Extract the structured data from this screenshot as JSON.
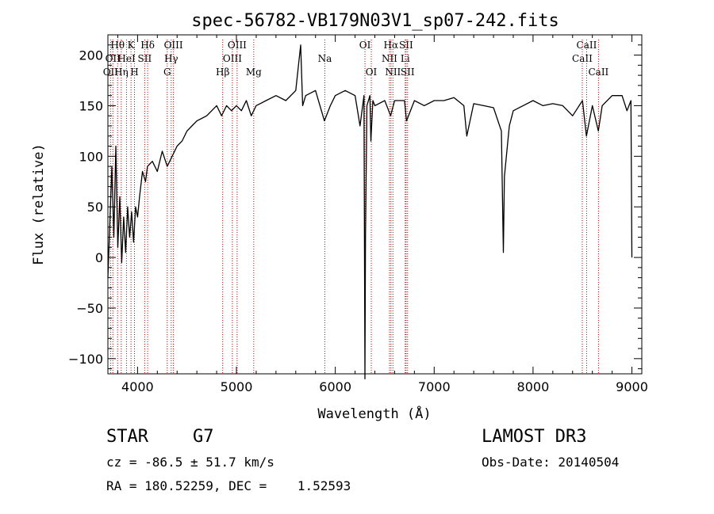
{
  "chart_data": {
    "type": "line",
    "title": "spec-56782-VB179N03V1_sp07-242.fits",
    "xlabel": "Wavelength (Å)",
    "ylabel": "Flux (relative)",
    "xlim": [
      3700,
      9100
    ],
    "ylim": [
      -115,
      220
    ],
    "xticks": [
      4000,
      5000,
      6000,
      7000,
      8000,
      9000
    ],
    "yticks": [
      -100,
      -50,
      0,
      50,
      100,
      150,
      200
    ],
    "series": [
      {
        "name": "spectrum",
        "x": [
          3700,
          3740,
          3760,
          3780,
          3800,
          3820,
          3840,
          3860,
          3880,
          3900,
          3920,
          3940,
          3960,
          3980,
          4000,
          4020,
          4050,
          4080,
          4100,
          4150,
          4200,
          4250,
          4300,
          4350,
          4400,
          4450,
          4500,
          4550,
          4600,
          4700,
          4800,
          4850,
          4900,
          4950,
          5000,
          5050,
          5100,
          5150,
          5200,
          5300,
          5400,
          5500,
          5600,
          5650,
          5670,
          5700,
          5800,
          5890,
          5950,
          6000,
          6100,
          6200,
          6250,
          6290,
          6300,
          6305,
          6320,
          6350,
          6360,
          6380,
          6400,
          6500,
          6560,
          6600,
          6700,
          6720,
          6800,
          6900,
          7000,
          7100,
          7200,
          7300,
          7330,
          7400,
          7500,
          7600,
          7680,
          7700,
          7710,
          7730,
          7760,
          7800,
          7900,
          8000,
          8100,
          8200,
          8300,
          8400,
          8500,
          8540,
          8600,
          8660,
          8700,
          8800,
          8900,
          8950,
          8990,
          9000
        ],
        "y": [
          -20,
          90,
          20,
          110,
          10,
          60,
          -5,
          40,
          5,
          50,
          20,
          45,
          15,
          50,
          40,
          60,
          85,
          75,
          90,
          95,
          85,
          105,
          90,
          100,
          110,
          115,
          125,
          130,
          135,
          140,
          150,
          140,
          150,
          145,
          150,
          145,
          155,
          140,
          150,
          155,
          160,
          155,
          165,
          210,
          150,
          160,
          165,
          135,
          150,
          160,
          165,
          160,
          130,
          160,
          -120,
          20,
          150,
          160,
          115,
          155,
          150,
          155,
          140,
          155,
          155,
          135,
          155,
          150,
          155,
          155,
          158,
          150,
          120,
          152,
          150,
          148,
          125,
          5,
          80,
          100,
          130,
          145,
          150,
          155,
          150,
          152,
          150,
          140,
          155,
          120,
          150,
          125,
          150,
          160,
          160,
          145,
          155,
          0
        ]
      }
    ],
    "lines": [
      {
        "x": 3727,
        "label": "OII",
        "row": 2
      },
      {
        "x": 3750,
        "label": "OII",
        "row": 1
      },
      {
        "x": 3798,
        "label": "Hθ",
        "row": 0
      },
      {
        "x": 3835,
        "label": "Hη",
        "row": 2
      },
      {
        "x": 3889,
        "label": "HeI",
        "row": 1
      },
      {
        "x": 3934,
        "label": "K",
        "row": 0
      },
      {
        "x": 3969,
        "label": "H",
        "row": 2
      },
      {
        "x": 4072,
        "label": "SII",
        "row": 1
      },
      {
        "x": 4102,
        "label": "Hδ",
        "row": 0
      },
      {
        "x": 4300,
        "label": "G",
        "row": 2
      },
      {
        "x": 4340,
        "label": "Hγ",
        "row": 1
      },
      {
        "x": 4363,
        "label": "OIII",
        "row": 0
      },
      {
        "x": 4861,
        "label": "Hβ",
        "row": 2
      },
      {
        "x": 4959,
        "label": "OIII",
        "row": 1
      },
      {
        "x": 5007,
        "label": "OIII",
        "row": 0
      },
      {
        "x": 5175,
        "label": "Mg",
        "row": 2
      },
      {
        "x": 5894,
        "label": "Na",
        "row": 1
      },
      {
        "x": 6300,
        "label": "OI",
        "row": 0
      },
      {
        "x": 6364,
        "label": "OI",
        "row": 2
      },
      {
        "x": 6548,
        "label": "NII",
        "row": 1
      },
      {
        "x": 6563,
        "label": "Hα",
        "row": 0
      },
      {
        "x": 6583,
        "label": "NII",
        "row": 2
      },
      {
        "x": 6707,
        "label": "Li",
        "row": 1
      },
      {
        "x": 6716,
        "label": "SII",
        "row": 0
      },
      {
        "x": 6731,
        "label": "SII",
        "row": 2
      },
      {
        "x": 8498,
        "label": "CaII",
        "row": 1
      },
      {
        "x": 8542,
        "label": "CaII",
        "row": 0
      },
      {
        "x": 8662,
        "label": "CaII",
        "row": 2
      }
    ]
  },
  "info": {
    "class": "STAR",
    "subclass": "G7",
    "survey": "LAMOST DR3",
    "cz": "cz = -86.5 ± 51.7 km/s",
    "obsdate": "Obs-Date: 20140504",
    "coords": "RA = 180.52259, DEC =    1.52593"
  },
  "colors": {
    "line": "#cc0000",
    "axis": "#000000"
  }
}
